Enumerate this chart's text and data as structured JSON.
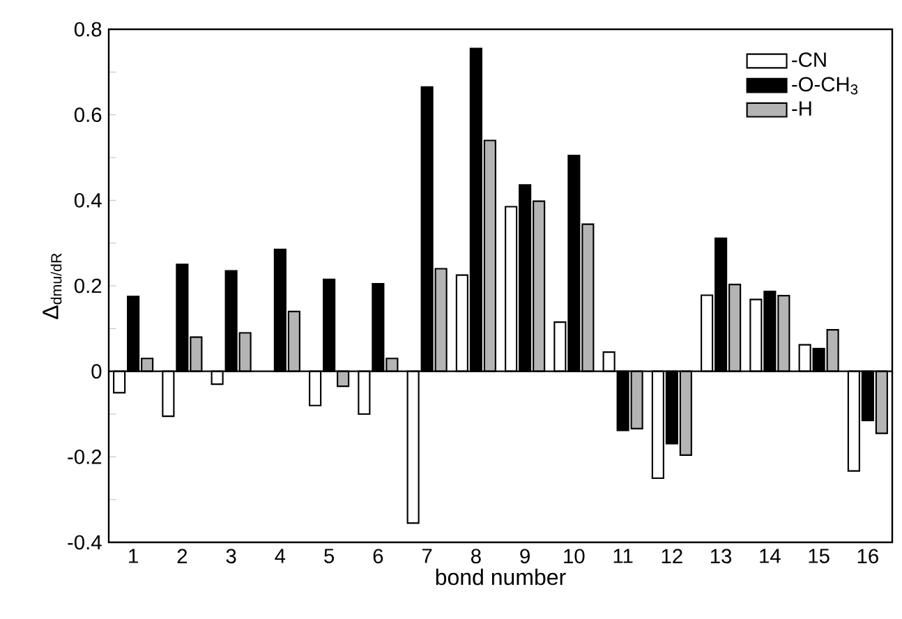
{
  "chart_data": {
    "type": "bar",
    "xlabel": "bond number",
    "ylabel": "Δ$_{dmu/dR}$",
    "categories": [
      "1",
      "2",
      "3",
      "4",
      "5",
      "6",
      "7",
      "8",
      "9",
      "10",
      "11",
      "12",
      "13",
      "14",
      "15",
      "16"
    ],
    "series": [
      {
        "name": "-CN",
        "color": "#ffffff",
        "values": [
          -0.05,
          -0.105,
          -0.03,
          null,
          -0.08,
          -0.1,
          -0.355,
          0.225,
          0.385,
          0.115,
          0.045,
          -0.25,
          0.178,
          0.168,
          0.062,
          -0.233
        ]
      },
      {
        "name": "-O-CH$_{3}$",
        "color": "#000000",
        "values": [
          0.175,
          0.25,
          0.235,
          0.285,
          0.215,
          0.205,
          0.665,
          0.755,
          0.436,
          0.505,
          -0.138,
          -0.169,
          0.311,
          0.187,
          0.053,
          -0.115
        ]
      },
      {
        "name": "-H",
        "color": "#b4b4b4",
        "values": [
          0.03,
          0.08,
          0.09,
          0.14,
          -0.035,
          0.03,
          0.24,
          0.54,
          0.398,
          0.344,
          -0.134,
          -0.196,
          0.203,
          0.177,
          0.097,
          -0.145
        ]
      }
    ],
    "ylim": [
      -0.4,
      0.8
    ],
    "yticks": [
      -0.4,
      {
        "value": -0.3,
        "label": null
      },
      -0.2,
      {
        "value": -0.1,
        "label": null
      },
      0,
      {
        "value": 0.1,
        "label": null
      },
      0.2,
      {
        "value": 0.3,
        "label": null
      },
      0.4,
      {
        "value": 0.5,
        "label": null
      },
      0.6,
      {
        "value": 0.7,
        "label": null
      },
      0.8
    ],
    "ref_lines": [
      {
        "axis": "y",
        "value": 0,
        "color": "#000000",
        "line_style": "solid"
      }
    ],
    "grid": false,
    "legend": "top right"
  }
}
